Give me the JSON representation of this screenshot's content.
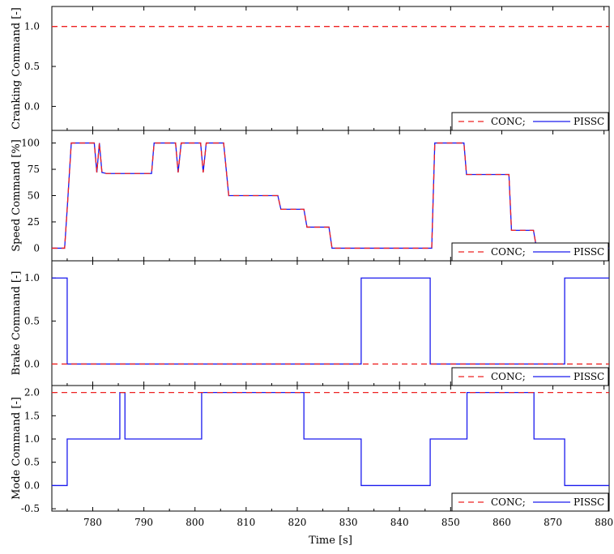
{
  "chart_data": {
    "type": "line",
    "x_axis": {
      "label": "Time [s]",
      "range": [
        772,
        881
      ],
      "ticks": [
        780,
        790,
        800,
        810,
        820,
        830,
        840,
        850,
        860,
        870,
        880
      ],
      "tick_labels": [
        "780",
        "790",
        "800",
        "810",
        "820",
        "830",
        "840",
        "850",
        "860",
        "870",
        "880"
      ]
    },
    "panels": [
      {
        "ylabel": "Cranking Command [-]",
        "ylim": [
          -0.3,
          1.25
        ],
        "yticks": [
          0.0,
          0.5,
          1.0
        ],
        "ytick_labels": [
          "0.0",
          "0.5",
          "1.0"
        ],
        "legend": "bottom-right",
        "series": [
          {
            "name": "CONC;",
            "style": "dashed",
            "color": "#ee2222",
            "x": [
              772,
              881
            ],
            "y": [
              1.0,
              1.0
            ]
          },
          {
            "name": "PISSC",
            "style": "solid",
            "color": "#1a1aee",
            "x": [],
            "y": []
          }
        ]
      },
      {
        "ylabel": "Speed Command [%]",
        "ylim": [
          -12,
          112
        ],
        "yticks": [
          0,
          25,
          50,
          75,
          100
        ],
        "ytick_labels": [
          "0",
          "25",
          "50",
          "75",
          "100"
        ],
        "legend": "bottom-right",
        "series": [
          {
            "name": "CONC;",
            "style": "dashed",
            "color": "#ee2222",
            "x": [
              772,
              774.5,
              775.1,
              775.8,
              780.3,
              780.8,
              781.3,
              781.8,
              782.7,
              791.5,
              792,
              796.2,
              796.7,
              797.3,
              801.1,
              801.6,
              802.2,
              805.6,
              806.6,
              816.2,
              816.8,
              821.3,
              821.9,
              826.2,
              826.8,
              846.3,
              846.9,
              852.6,
              853.1,
              861.4,
              861.9,
              866.2,
              866.8,
              881
            ],
            "y": [
              0,
              0,
              45,
              100,
              100,
              72,
              100,
              72,
              71,
              71,
              100,
              100,
              72,
              100,
              100,
              72,
              100,
              100,
              50,
              50,
              37,
              37,
              20,
              20,
              0,
              0,
              100,
              100,
              70,
              70,
              17,
              17,
              0,
              0
            ]
          },
          {
            "name": "PISSC",
            "style": "solid",
            "color": "#1a1aee",
            "x": [
              772,
              774.5,
              775.1,
              775.8,
              780.3,
              780.8,
              781.3,
              781.8,
              782.7,
              791.5,
              792,
              796.2,
              796.7,
              797.3,
              801.1,
              801.6,
              802.2,
              805.6,
              806.6,
              816.2,
              816.8,
              821.3,
              821.9,
              826.2,
              826.8,
              846.3,
              846.9,
              852.6,
              853.1,
              861.4,
              861.9,
              866.2,
              866.8,
              881
            ],
            "y": [
              0,
              0,
              45,
              100,
              100,
              72,
              100,
              72,
              71,
              71,
              100,
              100,
              72,
              100,
              100,
              72,
              100,
              100,
              50,
              50,
              37,
              37,
              20,
              20,
              0,
              0,
              100,
              100,
              70,
              70,
              17,
              17,
              0,
              0
            ]
          }
        ]
      },
      {
        "ylabel": "Brake Command [-]",
        "ylim": [
          -0.25,
          1.2
        ],
        "yticks": [
          0.0,
          0.5,
          1.0
        ],
        "ytick_labels": [
          "0.0",
          "0.5",
          "1.0"
        ],
        "legend": "bottom-right",
        "series": [
          {
            "name": "CONC;",
            "style": "dashed",
            "color": "#ee2222",
            "x": [
              772,
              881
            ],
            "y": [
              0.0,
              0.0
            ]
          },
          {
            "name": "PISSC",
            "style": "solid",
            "color": "#1a1aee",
            "x": [
              772,
              775,
              775,
              832.5,
              832.5,
              846,
              846,
              872.3,
              872.3,
              881
            ],
            "y": [
              1.0,
              1.0,
              0.0,
              0.0,
              1.0,
              1.0,
              0.0,
              0.0,
              1.0,
              1.0
            ]
          }
        ]
      },
      {
        "ylabel": "Mode Command [-]",
        "ylim": [
          -0.55,
          2.15
        ],
        "yticks": [
          -0.5,
          0.0,
          0.5,
          1.0,
          1.5,
          2.0
        ],
        "ytick_labels": [
          "-0.5",
          "0.0",
          "0.5",
          "1.0",
          "1.5",
          "2.0"
        ],
        "legend": "bottom-right",
        "series": [
          {
            "name": "CONC;",
            "style": "dashed",
            "color": "#ee2222",
            "x": [
              772,
              881
            ],
            "y": [
              2.0,
              2.0
            ]
          },
          {
            "name": "PISSC",
            "style": "solid",
            "color": "#1a1aee",
            "x": [
              772,
              775,
              775,
              785.3,
              785.3,
              786.3,
              786.3,
              801.3,
              801.3,
              821.3,
              821.3,
              832.5,
              832.5,
              846,
              846,
              853.2,
              853.2,
              866.3,
              866.3,
              872.3,
              872.3,
              881
            ],
            "y": [
              0.0,
              0.0,
              1.0,
              1.0,
              2.0,
              2.0,
              1.0,
              1.0,
              2.0,
              2.0,
              1.0,
              1.0,
              0.0,
              0.0,
              1.0,
              1.0,
              2.0,
              2.0,
              1.0,
              1.0,
              0.0,
              0.0
            ]
          }
        ]
      }
    ]
  }
}
